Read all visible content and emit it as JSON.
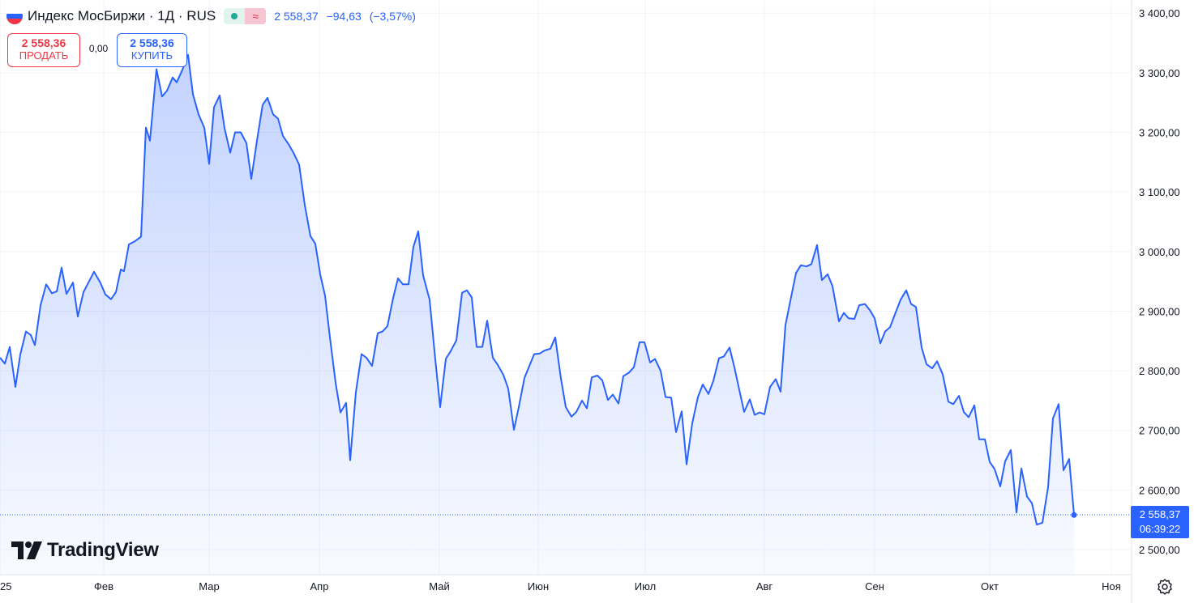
{
  "header": {
    "title": "Индекс МосБиржи · 1Д · RUS",
    "status_approx_symbol": "≈",
    "last": "2 558,37",
    "change": "−94,63",
    "change_pct": "(−3,57%)"
  },
  "trade": {
    "sell_price": "2 558,36",
    "sell_label": "ПРОДАТЬ",
    "spread": "0,00",
    "buy_price": "2 558,36",
    "buy_label": "КУПИТЬ"
  },
  "logo": {
    "text": "TradingView"
  },
  "price_label": {
    "price": "2 558,37",
    "countdown": "06:39:22"
  },
  "icons": {
    "flag": "russia-flag-icon",
    "status": "market-open-icon",
    "logo": "tradingview-logo-icon",
    "settings": "gear-icon"
  },
  "colors": {
    "line": "#2962ff",
    "sell": "#f23645",
    "buy": "#2962ff",
    "grid": "#f0f3fa",
    "text": "#131722"
  },
  "chart_data": {
    "type": "area",
    "title": "",
    "xlabel": "",
    "ylabel": "",
    "ylim": [
      2470,
      3410
    ],
    "xlim": [
      0,
      1396
    ],
    "y_ticks": [
      {
        "value": 2500,
        "label": "2 500,00"
      },
      {
        "value": 2600,
        "label": "2 600,00"
      },
      {
        "value": 2700,
        "label": "2 700,00"
      },
      {
        "value": 2800,
        "label": "2 800,00"
      },
      {
        "value": 2900,
        "label": "2 900,00"
      },
      {
        "value": 3000,
        "label": "3 000,00"
      },
      {
        "value": 3100,
        "label": "3 100,00"
      },
      {
        "value": 3200,
        "label": "3 200,00"
      },
      {
        "value": 3300,
        "label": "3 300,00"
      },
      {
        "value": 3400,
        "label": "3 400,00"
      }
    ],
    "x_ticks": [
      {
        "pos": 0,
        "label": "25"
      },
      {
        "pos": 128,
        "label": "Фев"
      },
      {
        "pos": 258,
        "label": "Мар"
      },
      {
        "pos": 394,
        "label": "Апр"
      },
      {
        "pos": 542,
        "label": "Май"
      },
      {
        "pos": 664,
        "label": "Июн"
      },
      {
        "pos": 796,
        "label": "Июл"
      },
      {
        "pos": 943,
        "label": "Авг"
      },
      {
        "pos": 1079,
        "label": "Сен"
      },
      {
        "pos": 1221,
        "label": "Окт"
      },
      {
        "pos": 1371,
        "label": "Ноя"
      }
    ],
    "last_value": 2558.37,
    "series": [
      {
        "values": [
          [
            0,
            2822
          ],
          [
            6,
            2812
          ],
          [
            12,
            2840
          ],
          [
            19,
            2773
          ],
          [
            25,
            2827
          ],
          [
            32,
            2866
          ],
          [
            38,
            2860
          ],
          [
            43,
            2843
          ],
          [
            50,
            2910
          ],
          [
            57,
            2945
          ],
          [
            64,
            2930
          ],
          [
            70,
            2933
          ],
          [
            76,
            2973
          ],
          [
            82,
            2929
          ],
          [
            90,
            2948
          ],
          [
            96,
            2891
          ],
          [
            103,
            2932
          ],
          [
            116,
            2966
          ],
          [
            124,
            2947
          ],
          [
            130,
            2928
          ],
          [
            137,
            2920
          ],
          [
            143,
            2932
          ],
          [
            149,
            2970
          ],
          [
            153,
            2967
          ],
          [
            159,
            3012
          ],
          [
            166,
            3017
          ],
          [
            174,
            3025
          ],
          [
            180,
            3208
          ],
          [
            185,
            3186
          ],
          [
            193,
            3306
          ],
          [
            200,
            3260
          ],
          [
            206,
            3270
          ],
          [
            213,
            3292
          ],
          [
            218,
            3284
          ],
          [
            225,
            3305
          ],
          [
            232,
            3330
          ],
          [
            238,
            3264
          ],
          [
            245,
            3230
          ],
          [
            252,
            3208
          ],
          [
            258,
            3147
          ],
          [
            264,
            3242
          ],
          [
            271,
            3262
          ],
          [
            277,
            3207
          ],
          [
            284,
            3166
          ],
          [
            290,
            3200
          ],
          [
            297,
            3200
          ],
          [
            304,
            3182
          ],
          [
            310,
            3122
          ],
          [
            318,
            3195
          ],
          [
            324,
            3246
          ],
          [
            330,
            3258
          ],
          [
            337,
            3230
          ],
          [
            343,
            3223
          ],
          [
            349,
            3194
          ],
          [
            356,
            3180
          ],
          [
            362,
            3166
          ],
          [
            369,
            3146
          ],
          [
            376,
            3078
          ],
          [
            383,
            3026
          ],
          [
            389,
            3013
          ],
          [
            395,
            2962
          ],
          [
            401,
            2926
          ],
          [
            407,
            2856
          ],
          [
            414,
            2780
          ],
          [
            420,
            2730
          ],
          [
            427,
            2746
          ],
          [
            432,
            2650
          ],
          [
            439,
            2764
          ],
          [
            446,
            2828
          ],
          [
            452,
            2822
          ],
          [
            459,
            2808
          ],
          [
            466,
            2863
          ],
          [
            472,
            2866
          ],
          [
            478,
            2875
          ],
          [
            485,
            2922
          ],
          [
            491,
            2955
          ],
          [
            497,
            2945
          ],
          [
            504,
            2945
          ],
          [
            510,
            3008
          ],
          [
            516,
            3034
          ],
          [
            522,
            2960
          ],
          [
            530,
            2919
          ],
          [
            537,
            2819
          ],
          [
            543,
            2739
          ],
          [
            550,
            2820
          ],
          [
            556,
            2833
          ],
          [
            563,
            2851
          ],
          [
            570,
            2931
          ],
          [
            576,
            2935
          ],
          [
            582,
            2923
          ],
          [
            588,
            2840
          ],
          [
            595,
            2840
          ],
          [
            601,
            2884
          ],
          [
            608,
            2822
          ],
          [
            614,
            2810
          ],
          [
            621,
            2793
          ],
          [
            627,
            2770
          ],
          [
            634,
            2701
          ],
          [
            640,
            2739
          ],
          [
            647,
            2788
          ],
          [
            653,
            2808
          ],
          [
            659,
            2828
          ],
          [
            666,
            2829
          ],
          [
            672,
            2834
          ],
          [
            679,
            2837
          ],
          [
            685,
            2856
          ],
          [
            692,
            2787
          ],
          [
            698,
            2739
          ],
          [
            705,
            2723
          ],
          [
            711,
            2731
          ],
          [
            718,
            2750
          ],
          [
            724,
            2737
          ],
          [
            730,
            2789
          ],
          [
            737,
            2792
          ],
          [
            743,
            2784
          ],
          [
            750,
            2751
          ],
          [
            756,
            2760
          ],
          [
            763,
            2745
          ],
          [
            769,
            2791
          ],
          [
            776,
            2797
          ],
          [
            782,
            2806
          ],
          [
            789,
            2848
          ],
          [
            795,
            2848
          ],
          [
            802,
            2814
          ],
          [
            808,
            2820
          ],
          [
            815,
            2800
          ],
          [
            821,
            2756
          ],
          [
            828,
            2755
          ],
          [
            834,
            2697
          ],
          [
            841,
            2732
          ],
          [
            847,
            2643
          ],
          [
            854,
            2712
          ],
          [
            861,
            2756
          ],
          [
            867,
            2777
          ],
          [
            874,
            2761
          ],
          [
            880,
            2783
          ],
          [
            887,
            2821
          ],
          [
            893,
            2824
          ],
          [
            900,
            2839
          ],
          [
            906,
            2806
          ],
          [
            912,
            2768
          ],
          [
            918,
            2731
          ],
          [
            925,
            2752
          ],
          [
            931,
            2726
          ],
          [
            937,
            2730
          ],
          [
            943,
            2727
          ],
          [
            950,
            2773
          ],
          [
            957,
            2786
          ],
          [
            963,
            2765
          ],
          [
            969,
            2877
          ],
          [
            976,
            2924
          ],
          [
            982,
            2964
          ],
          [
            988,
            2977
          ],
          [
            995,
            2975
          ],
          [
            1001,
            2979
          ],
          [
            1008,
            3011
          ],
          [
            1014,
            2952
          ],
          [
            1021,
            2962
          ],
          [
            1027,
            2942
          ],
          [
            1035,
            2883
          ],
          [
            1041,
            2897
          ],
          [
            1047,
            2888
          ],
          [
            1054,
            2887
          ],
          [
            1060,
            2910
          ],
          [
            1067,
            2912
          ],
          [
            1073,
            2902
          ],
          [
            1079,
            2888
          ],
          [
            1086,
            2846
          ],
          [
            1092,
            2866
          ],
          [
            1098,
            2873
          ],
          [
            1105,
            2898
          ],
          [
            1111,
            2919
          ],
          [
            1118,
            2935
          ],
          [
            1124,
            2912
          ],
          [
            1130,
            2907
          ],
          [
            1137,
            2839
          ],
          [
            1143,
            2811
          ],
          [
            1150,
            2804
          ],
          [
            1156,
            2816
          ],
          [
            1163,
            2794
          ],
          [
            1170,
            2748
          ],
          [
            1176,
            2744
          ],
          [
            1183,
            2758
          ],
          [
            1189,
            2731
          ],
          [
            1195,
            2722
          ],
          [
            1202,
            2742
          ],
          [
            1208,
            2685
          ],
          [
            1215,
            2685
          ],
          [
            1221,
            2647
          ],
          [
            1227,
            2635
          ],
          [
            1234,
            2606
          ],
          [
            1240,
            2648
          ],
          [
            1247,
            2667
          ],
          [
            1254,
            2562
          ],
          [
            1260,
            2636
          ],
          [
            1267,
            2589
          ],
          [
            1273,
            2578
          ],
          [
            1279,
            2542
          ],
          [
            1286,
            2545
          ],
          [
            1293,
            2605
          ],
          [
            1299,
            2720
          ],
          [
            1306,
            2744
          ],
          [
            1312,
            2633
          ],
          [
            1319,
            2652
          ],
          [
            1325,
            2558
          ]
        ]
      }
    ]
  }
}
